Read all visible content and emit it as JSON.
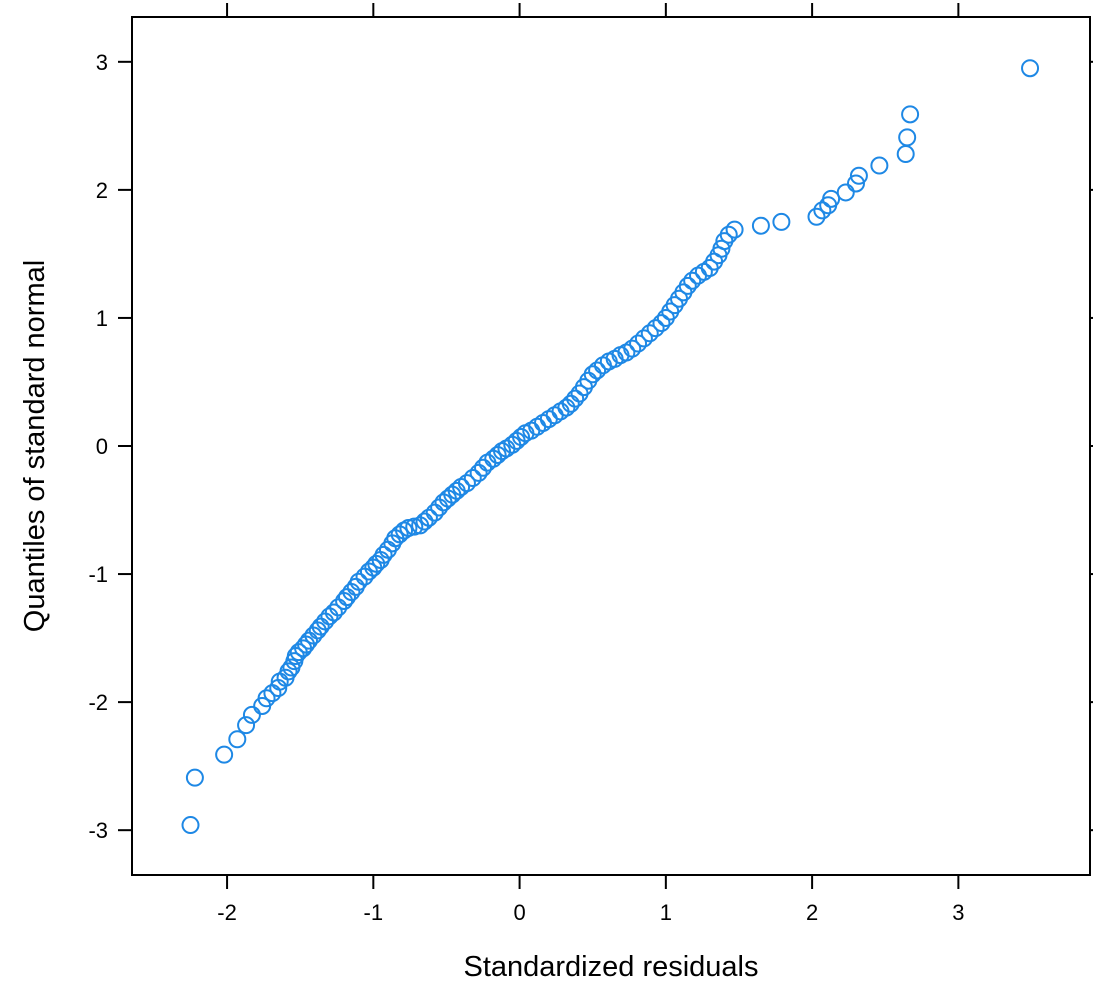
{
  "chart_data": {
    "type": "scatter",
    "title": "",
    "xlabel": "Standardized residuals",
    "ylabel": "Quantiles of standard normal",
    "xlim": [
      -2.65,
      3.9
    ],
    "ylim": [
      -3.35,
      3.35
    ],
    "x_ticks": [
      -2,
      -1,
      0,
      1,
      2,
      3
    ],
    "y_ticks": [
      -3,
      -2,
      -1,
      0,
      1,
      2,
      3
    ],
    "x_tick_labels": [
      "-2",
      "-1",
      "0",
      "1",
      "2",
      "3"
    ],
    "y_tick_labels": [
      "-3",
      "-2",
      "-1",
      "0",
      "1",
      "2",
      "3"
    ],
    "grid": false,
    "legend": "none",
    "marker": "open-circle",
    "marker_color": "#1E88E5",
    "series": [
      {
        "x": [
          -2.25,
          -2.22,
          -2.02,
          -1.93,
          -1.87,
          -1.83,
          -1.76,
          -1.73,
          -1.69,
          -1.65,
          -1.64,
          -1.6,
          -1.58,
          -1.56,
          -1.54,
          -1.53,
          -1.51,
          -1.48,
          -1.46,
          -1.44,
          -1.41,
          -1.38,
          -1.36,
          -1.33,
          -1.3,
          -1.27,
          -1.24,
          -1.2,
          -1.18,
          -1.15,
          -1.12,
          -1.1,
          -1.06,
          -1.03,
          -1.0,
          -0.98,
          -0.95,
          -0.93,
          -0.9,
          -0.87,
          -0.85,
          -0.82,
          -0.79,
          -0.76,
          -0.72,
          -0.68,
          -0.65,
          -0.62,
          -0.58,
          -0.55,
          -0.52,
          -0.49,
          -0.46,
          -0.43,
          -0.4,
          -0.36,
          -0.32,
          -0.28,
          -0.25,
          -0.22,
          -0.18,
          -0.15,
          -0.12,
          -0.09,
          -0.05,
          -0.02,
          0.01,
          0.04,
          0.08,
          0.12,
          0.16,
          0.2,
          0.24,
          0.28,
          0.32,
          0.35,
          0.38,
          0.41,
          0.44,
          0.47,
          0.5,
          0.53,
          0.57,
          0.61,
          0.65,
          0.69,
          0.73,
          0.77,
          0.81,
          0.85,
          0.89,
          0.93,
          0.97,
          1.0,
          1.03,
          1.06,
          1.09,
          1.12,
          1.15,
          1.18,
          1.22,
          1.26,
          1.3,
          1.33,
          1.36,
          1.38,
          1.4,
          1.43,
          1.47,
          1.65,
          1.79,
          2.03,
          2.07,
          2.11,
          2.13,
          2.23,
          2.3,
          2.32,
          2.46,
          2.64,
          2.65,
          2.67,
          3.49
        ],
        "y": [
          -2.96,
          -2.59,
          -2.41,
          -2.29,
          -2.18,
          -2.1,
          -2.03,
          -1.97,
          -1.93,
          -1.89,
          -1.84,
          -1.81,
          -1.76,
          -1.73,
          -1.68,
          -1.64,
          -1.61,
          -1.58,
          -1.55,
          -1.52,
          -1.48,
          -1.44,
          -1.41,
          -1.37,
          -1.33,
          -1.3,
          -1.26,
          -1.21,
          -1.18,
          -1.14,
          -1.1,
          -1.06,
          -1.02,
          -0.98,
          -0.95,
          -0.92,
          -0.89,
          -0.85,
          -0.81,
          -0.76,
          -0.72,
          -0.69,
          -0.66,
          -0.64,
          -0.63,
          -0.62,
          -0.59,
          -0.56,
          -0.52,
          -0.48,
          -0.44,
          -0.41,
          -0.38,
          -0.35,
          -0.32,
          -0.29,
          -0.25,
          -0.21,
          -0.17,
          -0.13,
          -0.1,
          -0.07,
          -0.04,
          -0.02,
          0.01,
          0.04,
          0.07,
          0.1,
          0.12,
          0.15,
          0.18,
          0.21,
          0.24,
          0.27,
          0.3,
          0.33,
          0.37,
          0.41,
          0.46,
          0.51,
          0.56,
          0.59,
          0.63,
          0.66,
          0.68,
          0.71,
          0.73,
          0.76,
          0.8,
          0.84,
          0.88,
          0.92,
          0.96,
          1.0,
          1.05,
          1.1,
          1.15,
          1.2,
          1.25,
          1.29,
          1.33,
          1.36,
          1.39,
          1.44,
          1.49,
          1.54,
          1.6,
          1.65,
          1.69,
          1.72,
          1.75,
          1.79,
          1.84,
          1.88,
          1.93,
          1.98,
          2.05,
          2.11,
          2.19,
          2.28,
          2.41,
          2.59,
          2.95
        ]
      }
    ]
  }
}
